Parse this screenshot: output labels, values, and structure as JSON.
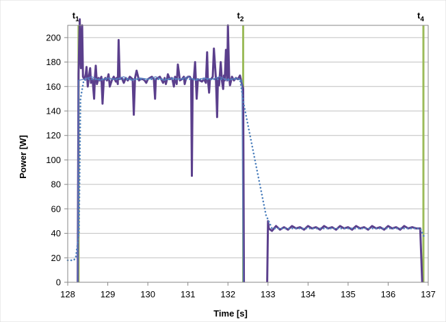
{
  "chart_data": {
    "type": "line",
    "xlabel": "Time [s]",
    "ylabel": "Power [W]",
    "xlim": [
      128,
      137
    ],
    "ylim": [
      0,
      210
    ],
    "xticks": [
      128,
      129,
      130,
      131,
      132,
      133,
      134,
      135,
      136,
      137
    ],
    "yticks": [
      0,
      20,
      40,
      60,
      80,
      100,
      120,
      140,
      160,
      180,
      200
    ],
    "grid": true,
    "legend": "none",
    "colors": {
      "measured": "#5b3f8c",
      "measured_overlay": "#5b7fc0",
      "model": "#4f81bd",
      "markers": "#9bbb59",
      "grid": "#bfbfbf",
      "frame": "#868686"
    },
    "vertical_markers": [
      {
        "base": "t",
        "sub": "1",
        "x": 128.27
      },
      {
        "base": "t",
        "sub": "2",
        "x": 132.38
      },
      {
        "base": "t",
        "sub": "4",
        "x": 136.88
      }
    ],
    "series": [
      {
        "style": "solid",
        "values": [
          [
            128.25,
            0
          ],
          [
            128.27,
            170
          ],
          [
            128.3,
            215
          ],
          [
            128.33,
            175
          ],
          [
            128.36,
            210
          ],
          [
            128.38,
            168
          ],
          [
            128.42,
            166
          ],
          [
            128.45,
            170
          ],
          [
            128.47,
            176
          ],
          [
            128.5,
            160
          ],
          [
            128.53,
            168
          ],
          [
            128.56,
            175
          ],
          [
            128.58,
            163
          ],
          [
            128.62,
            166
          ],
          [
            128.66,
            150
          ],
          [
            128.68,
            168
          ],
          [
            128.7,
            177
          ],
          [
            128.73,
            162
          ],
          [
            128.77,
            167
          ],
          [
            128.8,
            165
          ],
          [
            128.84,
            168
          ],
          [
            128.87,
            146
          ],
          [
            128.9,
            165
          ],
          [
            128.94,
            167
          ],
          [
            128.98,
            165
          ],
          [
            129.02,
            170
          ],
          [
            129.05,
            160
          ],
          [
            129.1,
            165
          ],
          [
            129.15,
            168
          ],
          [
            129.2,
            164
          ],
          [
            129.22,
            167
          ],
          [
            129.25,
            162
          ],
          [
            129.27,
            198
          ],
          [
            129.3,
            166
          ],
          [
            129.35,
            167
          ],
          [
            129.4,
            163
          ],
          [
            129.45,
            167
          ],
          [
            129.5,
            165
          ],
          [
            129.55,
            168
          ],
          [
            129.62,
            166
          ],
          [
            129.65,
            137
          ],
          [
            129.68,
            167
          ],
          [
            129.72,
            173
          ],
          [
            129.78,
            165
          ],
          [
            129.82,
            166
          ],
          [
            129.88,
            166
          ],
          [
            129.92,
            165
          ],
          [
            129.96,
            163
          ],
          [
            130,
            166
          ],
          [
            130.05,
            167
          ],
          [
            130.1,
            168
          ],
          [
            130.15,
            166
          ],
          [
            130.18,
            150
          ],
          [
            130.2,
            166
          ],
          [
            130.25,
            167
          ],
          [
            130.3,
            168
          ],
          [
            130.35,
            165
          ],
          [
            130.38,
            163
          ],
          [
            130.42,
            167
          ],
          [
            130.45,
            162
          ],
          [
            130.48,
            166
          ],
          [
            130.5,
            170
          ],
          [
            130.55,
            166
          ],
          [
            130.6,
            167
          ],
          [
            130.62,
            165
          ],
          [
            130.65,
            160
          ],
          [
            130.68,
            168
          ],
          [
            130.72,
            162
          ],
          [
            130.75,
            178
          ],
          [
            130.8,
            165
          ],
          [
            130.85,
            166
          ],
          [
            130.9,
            168
          ],
          [
            130.92,
            162
          ],
          [
            130.95,
            166
          ],
          [
            131,
            168
          ],
          [
            131.05,
            168
          ],
          [
            131.08,
            166
          ],
          [
            131.1,
            87
          ],
          [
            131.12,
            165
          ],
          [
            131.15,
            167
          ],
          [
            131.18,
            180
          ],
          [
            131.22,
            150
          ],
          [
            131.25,
            166
          ],
          [
            131.3,
            165
          ],
          [
            131.35,
            164
          ],
          [
            131.4,
            166
          ],
          [
            131.45,
            163
          ],
          [
            131.48,
            188
          ],
          [
            131.5,
            166
          ],
          [
            131.53,
            155
          ],
          [
            131.55,
            166
          ],
          [
            131.58,
            166
          ],
          [
            131.62,
            168
          ],
          [
            131.65,
            191
          ],
          [
            131.7,
            166
          ],
          [
            131.73,
            135
          ],
          [
            131.75,
            167
          ],
          [
            131.78,
            161
          ],
          [
            131.82,
            180
          ],
          [
            131.85,
            165
          ],
          [
            131.88,
            158
          ],
          [
            131.9,
            169
          ],
          [
            131.92,
            165
          ],
          [
            131.95,
            190
          ],
          [
            131.98,
            165
          ],
          [
            132.0,
            210
          ],
          [
            132.03,
            168
          ],
          [
            132.05,
            161
          ],
          [
            132.08,
            165
          ],
          [
            132.1,
            168
          ],
          [
            132.15,
            165
          ],
          [
            132.2,
            167
          ],
          [
            132.25,
            166
          ],
          [
            132.3,
            169
          ],
          [
            132.35,
            162
          ],
          [
            132.38,
            158
          ],
          [
            132.4,
            0
          ]
        ]
      },
      {
        "style": "solid",
        "values": [
          [
            132.98,
            0
          ],
          [
            133.0,
            50
          ],
          [
            133.02,
            44
          ],
          [
            133.1,
            42
          ],
          [
            133.2,
            46
          ],
          [
            133.3,
            43
          ],
          [
            133.4,
            45
          ],
          [
            133.5,
            43
          ],
          [
            133.6,
            46
          ],
          [
            133.7,
            44
          ],
          [
            133.8,
            45
          ],
          [
            133.9,
            43
          ],
          [
            134.0,
            46
          ],
          [
            134.1,
            44
          ],
          [
            134.2,
            45
          ],
          [
            134.3,
            43
          ],
          [
            134.4,
            46
          ],
          [
            134.5,
            44
          ],
          [
            134.6,
            45
          ],
          [
            134.7,
            43
          ],
          [
            134.8,
            46
          ],
          [
            134.9,
            44
          ],
          [
            135.0,
            45
          ],
          [
            135.1,
            43
          ],
          [
            135.2,
            46
          ],
          [
            135.3,
            44
          ],
          [
            135.4,
            45
          ],
          [
            135.5,
            43
          ],
          [
            135.6,
            46
          ],
          [
            135.7,
            44
          ],
          [
            135.8,
            45
          ],
          [
            135.9,
            43
          ],
          [
            136.0,
            46
          ],
          [
            136.1,
            44
          ],
          [
            136.2,
            45
          ],
          [
            136.3,
            43
          ],
          [
            136.4,
            46
          ],
          [
            136.5,
            44
          ],
          [
            136.6,
            45
          ],
          [
            136.7,
            44
          ],
          [
            136.8,
            44
          ],
          [
            136.85,
            0
          ]
        ]
      },
      {
        "style": "solid-overlay",
        "values": [
          [
            128.25,
            0
          ],
          [
            128.27,
            165
          ],
          [
            128.4,
            166
          ],
          [
            128.6,
            168
          ],
          [
            128.8,
            165
          ],
          [
            129.0,
            167
          ],
          [
            129.2,
            166
          ],
          [
            129.4,
            168
          ],
          [
            129.6,
            165
          ],
          [
            129.8,
            167
          ],
          [
            130.0,
            166
          ],
          [
            130.2,
            168
          ],
          [
            130.4,
            165
          ],
          [
            130.6,
            167
          ],
          [
            130.8,
            166
          ],
          [
            131.0,
            168
          ],
          [
            131.2,
            165
          ],
          [
            131.4,
            167
          ],
          [
            131.6,
            166
          ],
          [
            131.8,
            168
          ],
          [
            132.0,
            165
          ],
          [
            132.2,
            167
          ],
          [
            132.35,
            165
          ],
          [
            132.38,
            0
          ]
        ]
      },
      {
        "style": "dotted",
        "values": [
          [
            128.0,
            18
          ],
          [
            128.15,
            18
          ],
          [
            128.2,
            20
          ],
          [
            128.28,
            40
          ],
          [
            128.32,
            150
          ],
          [
            128.4,
            165
          ],
          [
            128.5,
            166
          ],
          [
            132.3,
            166
          ],
          [
            132.4,
            145
          ],
          [
            132.95,
            55
          ],
          [
            133.1,
            44
          ],
          [
            136.8,
            44
          ],
          [
            136.9,
            37
          ]
        ]
      }
    ]
  }
}
